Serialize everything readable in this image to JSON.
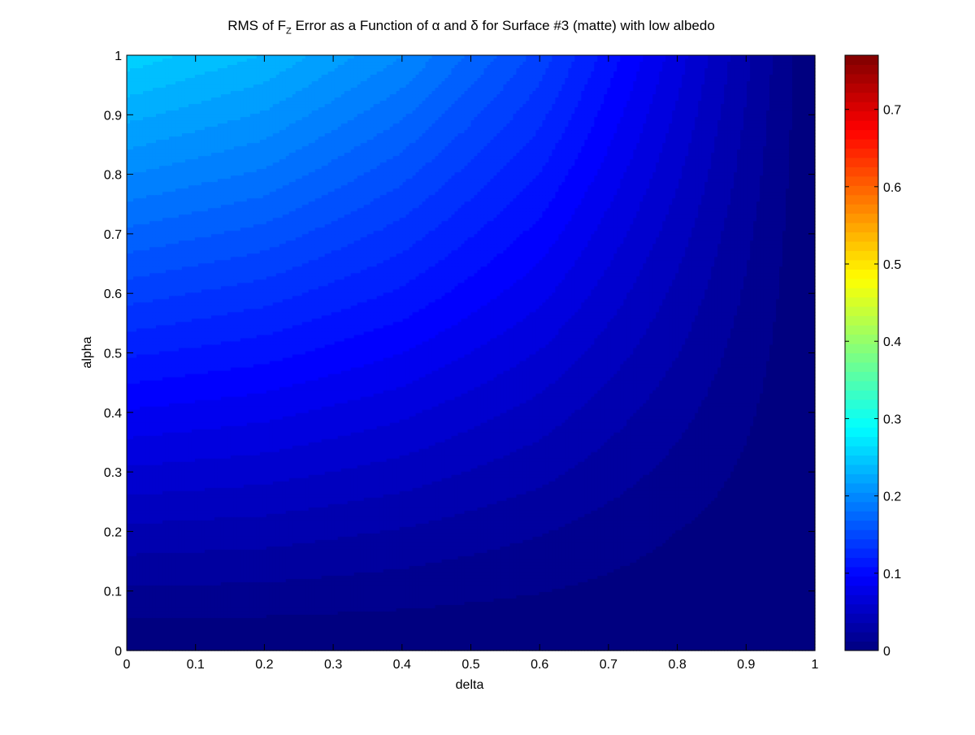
{
  "chart_data": {
    "type": "heatmap",
    "title": {
      "p1": "RMS of F",
      "sub": "Z",
      "p2": " Error as a Function of ",
      "alpha_sym": "α",
      "p3": " and ",
      "delta_sym": "δ",
      "p4": " for Surface #3 (matte)  with low  albedo"
    },
    "xlabel": "delta",
    "ylabel": "alpha",
    "xlim": [
      0,
      1
    ],
    "ylim": [
      0,
      1
    ],
    "xticks": [
      "0",
      "0.1",
      "0.2",
      "0.3",
      "0.4",
      "0.5",
      "0.6",
      "0.7",
      "0.8",
      "0.9",
      "1"
    ],
    "yticks": [
      "0",
      "0.1",
      "0.2",
      "0.3",
      "0.4",
      "0.5",
      "0.6",
      "0.7",
      "0.8",
      "0.9",
      "1"
    ],
    "colormap": "jet",
    "clim": [
      0,
      0.77
    ],
    "colorbar_ticks": [
      "0",
      "0.1",
      "0.2",
      "0.3",
      "0.4",
      "0.5",
      "0.6",
      "0.7"
    ],
    "contour_levels": 64,
    "corner_values": {
      "delta0_alpha0": 0.0,
      "delta0_alpha1": 0.26,
      "delta1_alpha1": 0.0,
      "delta1_alpha0": 0.0
    },
    "field_samples": {
      "delta": [
        0,
        0.2,
        0.4,
        0.6,
        0.8,
        1.0
      ],
      "alpha": [
        0,
        0.2,
        0.4,
        0.6,
        0.8,
        1.0
      ],
      "values_by_alpha": [
        [
          0.0,
          0.0,
          0.0,
          0.0,
          0.0,
          0.0
        ],
        [
          0.045,
          0.042,
          0.035,
          0.025,
          0.012,
          0.0
        ],
        [
          0.095,
          0.088,
          0.075,
          0.055,
          0.028,
          0.0
        ],
        [
          0.15,
          0.138,
          0.118,
          0.088,
          0.045,
          0.0
        ],
        [
          0.205,
          0.19,
          0.16,
          0.12,
          0.062,
          0.0
        ],
        [
          0.26,
          0.24,
          0.205,
          0.152,
          0.078,
          0.0
        ]
      ]
    }
  }
}
